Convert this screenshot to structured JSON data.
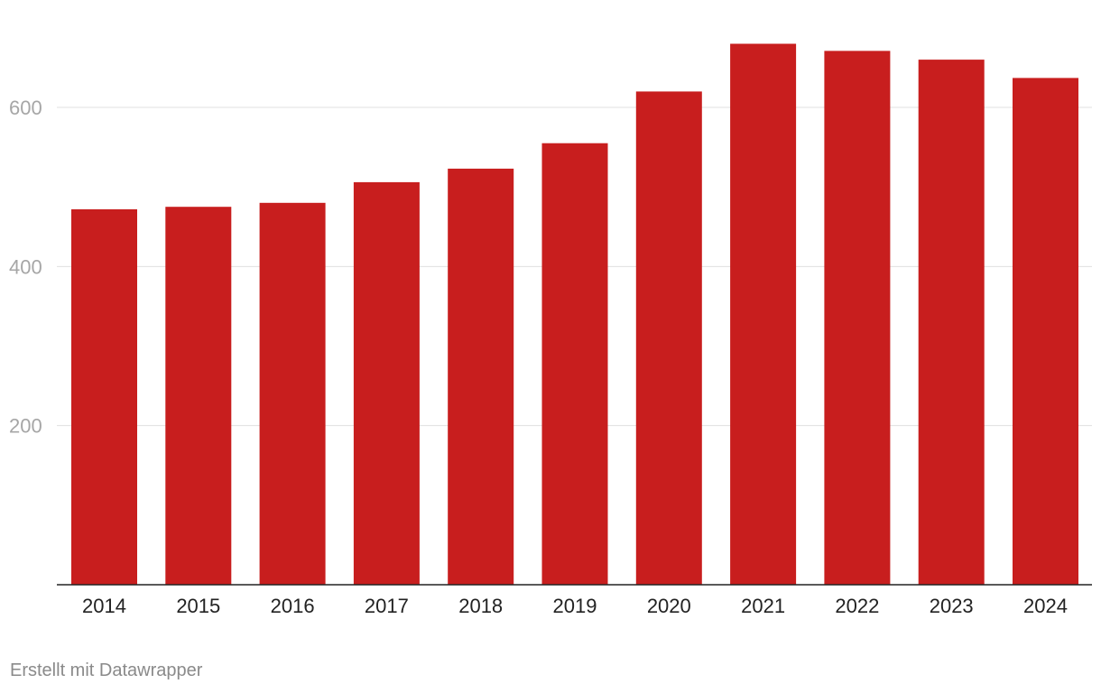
{
  "chart_data": {
    "type": "bar",
    "categories": [
      "2014",
      "2015",
      "2016",
      "2017",
      "2018",
      "2019",
      "2020",
      "2021",
      "2022",
      "2023",
      "2024"
    ],
    "values": [
      472,
      475,
      480,
      506,
      523,
      555,
      620,
      680,
      671,
      660,
      637
    ],
    "ylim": [
      0,
      700
    ],
    "yticks": [
      200,
      400,
      600
    ],
    "grid": true,
    "colors": {
      "bar": "#c81e1e"
    }
  },
  "footer": {
    "credit": "Erstellt mit Datawrapper"
  }
}
